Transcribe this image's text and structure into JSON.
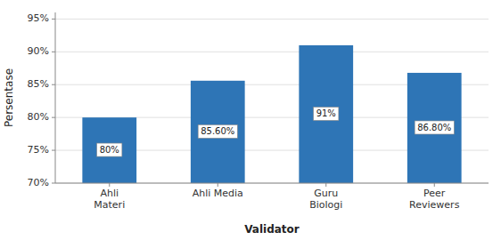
{
  "chart_data": {
    "type": "bar",
    "categories": [
      "Ahli\nMateri",
      "Ahli Media",
      "Guru\nBiologi",
      "Peer\nReviewers"
    ],
    "values": [
      80,
      85.6,
      91,
      86.8
    ],
    "value_labels": [
      "80%",
      "85.60%",
      "91%",
      "86.80%"
    ],
    "data_labels": true,
    "color": "#2E75B6",
    "xlabel": "Validator",
    "ylabel": "Persentase",
    "ylim": [
      70,
      96
    ],
    "yticks": [
      {
        "value": 70,
        "label": "70%"
      },
      {
        "value": 75,
        "label": "75%"
      },
      {
        "value": 80,
        "label": "80%"
      },
      {
        "value": 85,
        "label": "85%"
      },
      {
        "value": 90,
        "label": "90%"
      },
      {
        "value": 95,
        "label": "95%"
      }
    ],
    "grid": true
  }
}
